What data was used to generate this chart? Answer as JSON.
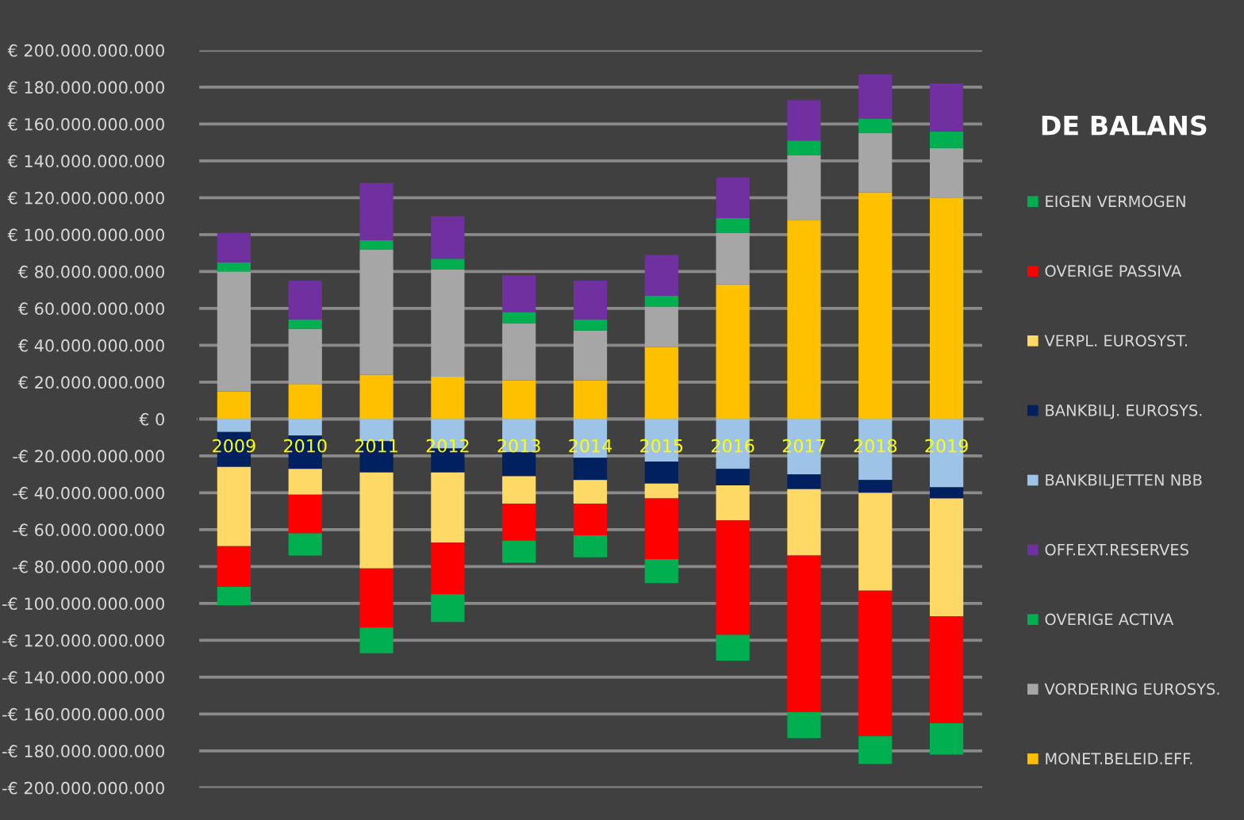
{
  "chart_data": {
    "type": "bar",
    "stacked": true,
    "legend_title": "DE BALANS",
    "legend": "right",
    "grid": "y",
    "categories": [
      "2009",
      "2010",
      "2011",
      "2012",
      "2013",
      "2014",
      "2015",
      "2016",
      "2017",
      "2018",
      "2019"
    ],
    "series": [
      {
        "name": "MONET.BELEID.EFF.",
        "color": "#ffc000",
        "values": [
          15000000000,
          19000000000,
          24000000000,
          23000000000,
          21000000000,
          21000000000,
          39000000000,
          73000000000,
          108000000000,
          123000000000,
          120000000000
        ]
      },
      {
        "name": "VORDERING EUROSYS.",
        "color": "#a6a6a6",
        "values": [
          65000000000,
          30000000000,
          68000000000,
          58000000000,
          31000000000,
          27000000000,
          22000000000,
          28000000000,
          35000000000,
          32000000000,
          27000000000
        ]
      },
      {
        "name": "OVERIGE ACTIVA",
        "color": "#00b050",
        "values": [
          5000000000,
          5000000000,
          5000000000,
          6000000000,
          6000000000,
          6000000000,
          6000000000,
          8000000000,
          8000000000,
          8000000000,
          9000000000
        ]
      },
      {
        "name": "OFF.EXT.RESERVES",
        "color": "#7030a0",
        "values": [
          16000000000,
          21000000000,
          31000000000,
          23000000000,
          20000000000,
          21000000000,
          22000000000,
          22000000000,
          22000000000,
          24000000000,
          26000000000
        ]
      },
      {
        "name": "BANKBILJETTEN NBB",
        "color": "#9dc3e6",
        "values": [
          -7000000000,
          -9000000000,
          -12000000000,
          -16000000000,
          -18000000000,
          -21000000000,
          -23000000000,
          -27000000000,
          -30000000000,
          -33000000000,
          -37000000000
        ]
      },
      {
        "name": "BANKBILJ. EUROSYS.",
        "color": "#002060",
        "values": [
          -19000000000,
          -18000000000,
          -17000000000,
          -13000000000,
          -13000000000,
          -12000000000,
          -12000000000,
          -9000000000,
          -8000000000,
          -7000000000,
          -6000000000
        ]
      },
      {
        "name": "VERPL. EUROSYST.",
        "color": "#ffd966",
        "values": [
          -43000000000,
          -14000000000,
          -52000000000,
          -38000000000,
          -15000000000,
          -13000000000,
          -8000000000,
          -19000000000,
          -36000000000,
          -53000000000,
          -64000000000
        ]
      },
      {
        "name": "OVERIGE PASSIVA",
        "color": "#ff0000",
        "values": [
          -22000000000,
          -21000000000,
          -32000000000,
          -28000000000,
          -20000000000,
          -17000000000,
          -33000000000,
          -62000000000,
          -85000000000,
          -79000000000,
          -58000000000
        ]
      },
      {
        "name": "EIGEN VERMOGEN",
        "color": "#00b050",
        "values": [
          -10000000000,
          -12000000000,
          -14000000000,
          -15000000000,
          -12000000000,
          -12000000000,
          -13000000000,
          -14000000000,
          -14000000000,
          -15000000000,
          -17000000000
        ]
      }
    ],
    "ylim": [
      -200000000000,
      200000000000
    ],
    "yticks": [
      {
        "value": 200000000000,
        "label": "€ 200.000.000.000"
      },
      {
        "value": 180000000000,
        "label": "€ 180.000.000.000"
      },
      {
        "value": 160000000000,
        "label": "€ 160.000.000.000"
      },
      {
        "value": 140000000000,
        "label": "€ 140.000.000.000"
      },
      {
        "value": 120000000000,
        "label": "€ 120.000.000.000"
      },
      {
        "value": 100000000000,
        "label": "€ 100.000.000.000"
      },
      {
        "value": 80000000000,
        "label": "€ 80.000.000.000"
      },
      {
        "value": 60000000000,
        "label": "€ 60.000.000.000"
      },
      {
        "value": 40000000000,
        "label": "€ 40.000.000.000"
      },
      {
        "value": 20000000000,
        "label": "€ 20.000.000.000"
      },
      {
        "value": 0,
        "label": "€ 0"
      },
      {
        "value": -20000000000,
        "label": "-€ 20.000.000.000"
      },
      {
        "value": -40000000000,
        "label": "-€ 40.000.000.000"
      },
      {
        "value": -60000000000,
        "label": "-€ 60.000.000.000"
      },
      {
        "value": -80000000000,
        "label": "-€ 80.000.000.000"
      },
      {
        "value": -100000000000,
        "label": "-€ 100.000.000.000"
      },
      {
        "value": -120000000000,
        "label": "-€ 120.000.000.000"
      },
      {
        "value": -140000000000,
        "label": "-€ 140.000.000.000"
      },
      {
        "value": -160000000000,
        "label": "-€ 160.000.000.000"
      },
      {
        "value": -180000000000,
        "label": "-€ 180.000.000.000"
      },
      {
        "value": -200000000000,
        "label": "-€ 200.000.000.000"
      }
    ]
  }
}
